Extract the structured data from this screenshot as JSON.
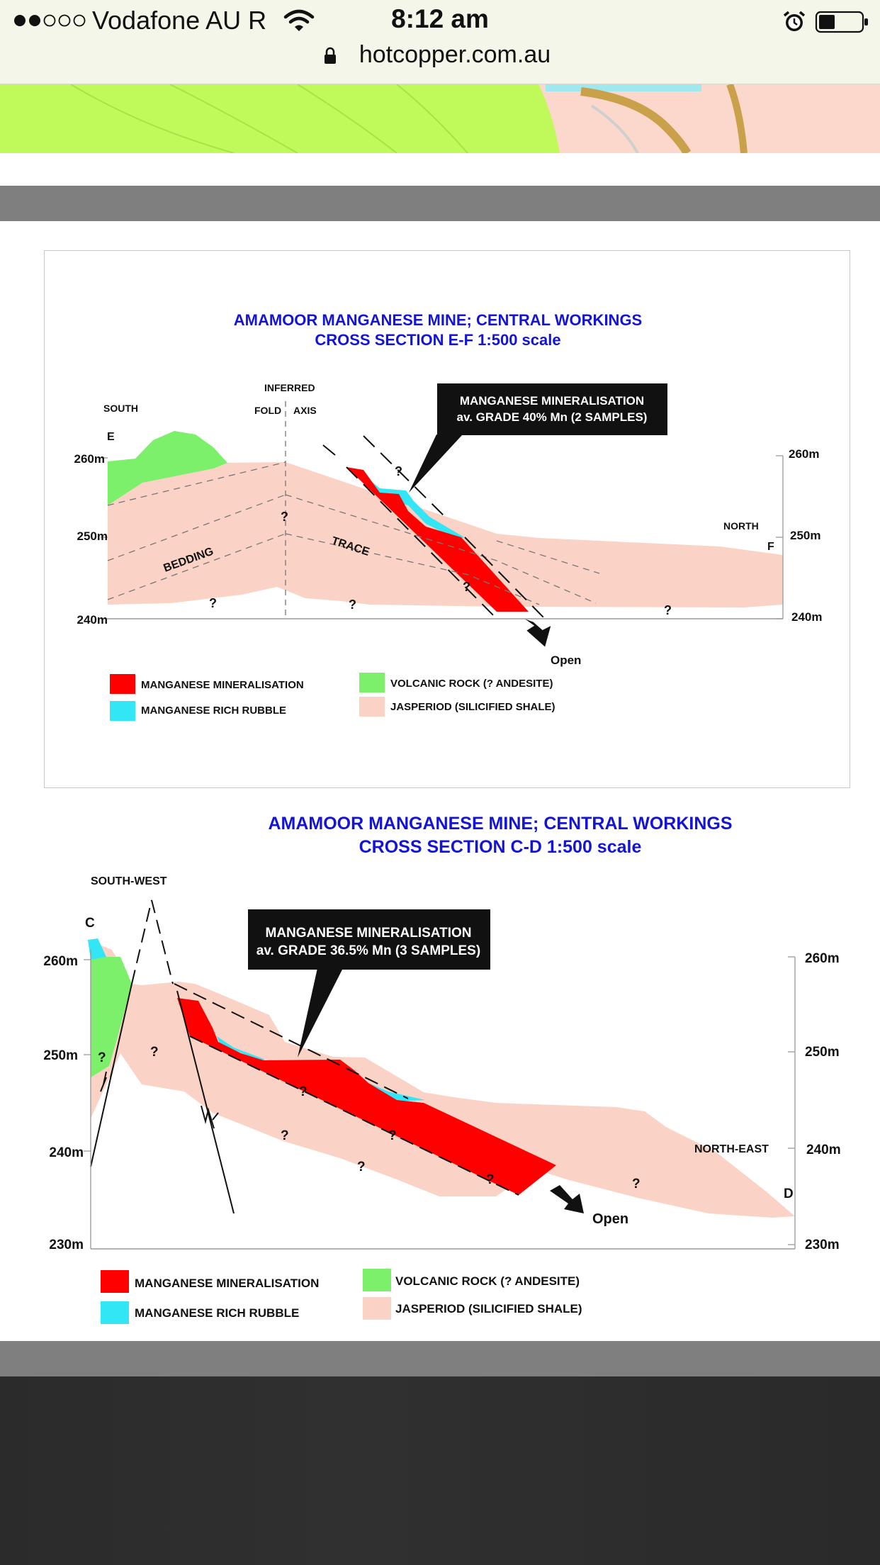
{
  "status_bar": {
    "carrier": "Vodafone AU R",
    "time": "8:12 am",
    "url": "hotcopper.com.au"
  },
  "colors": {
    "mineralisation": "#ff0000",
    "rubble": "#33e6f5",
    "volcanic": "#7cf06b",
    "jasperiod": "#fad3c6",
    "title_blue": "#1414d6"
  },
  "section_ef": {
    "title_line1": "AMAMOOR MANGANESE MINE; CENTRAL WORKINGS",
    "title_line2": "CROSS SECTION E-F  1:500 scale",
    "label_south": "SOUTH",
    "label_e": "E",
    "label_north": "NORTH",
    "label_f": "F",
    "label_inferred": "INFERRED",
    "label_fold": "FOLD",
    "label_axis": "AXIS",
    "label_bedding": "BEDDING",
    "label_trace": "TRACE",
    "elev_left": [
      "260m",
      "250m",
      "240m"
    ],
    "elev_right": [
      "260m",
      "250m",
      "240m"
    ],
    "callout_line1": "MANGANESE MINERALISATION",
    "callout_line2": "av. GRADE 40% Mn (2 SAMPLES)",
    "open_label": "Open",
    "q": "?",
    "legend": {
      "mineralisation": "MANGANESE MINERALISATION",
      "rubble": "MANGANESE RICH RUBBLE",
      "volcanic": "VOLCANIC ROCK (? ANDESITE)",
      "jasperiod": "JASPERIOD (SILICIFIED SHALE)"
    }
  },
  "section_cd": {
    "title_line1": "AMAMOOR MANGANESE MINE; CENTRAL WORKINGS",
    "title_line2": "CROSS SECTION C-D  1:500 scale",
    "label_southwest": "SOUTH-WEST",
    "label_c": "C",
    "label_northeast": "NORTH-EAST",
    "label_d": "D",
    "elev_left": [
      "260m",
      "250m",
      "240m",
      "230m"
    ],
    "elev_right": [
      "260m",
      "250m",
      "240m",
      "230m"
    ],
    "callout_line1": "MANGANESE MINERALISATION",
    "callout_line2": "av. GRADE 36.5% Mn (3 SAMPLES)",
    "open_label": "Open",
    "q": "?",
    "legend": {
      "mineralisation": "MANGANESE MINERALISATION",
      "rubble": "MANGANESE RICH RUBBLE",
      "volcanic": "VOLCANIC ROCK (? ANDESITE)",
      "jasperiod": "JASPERIOD (SILICIFIED SHALE)"
    }
  }
}
